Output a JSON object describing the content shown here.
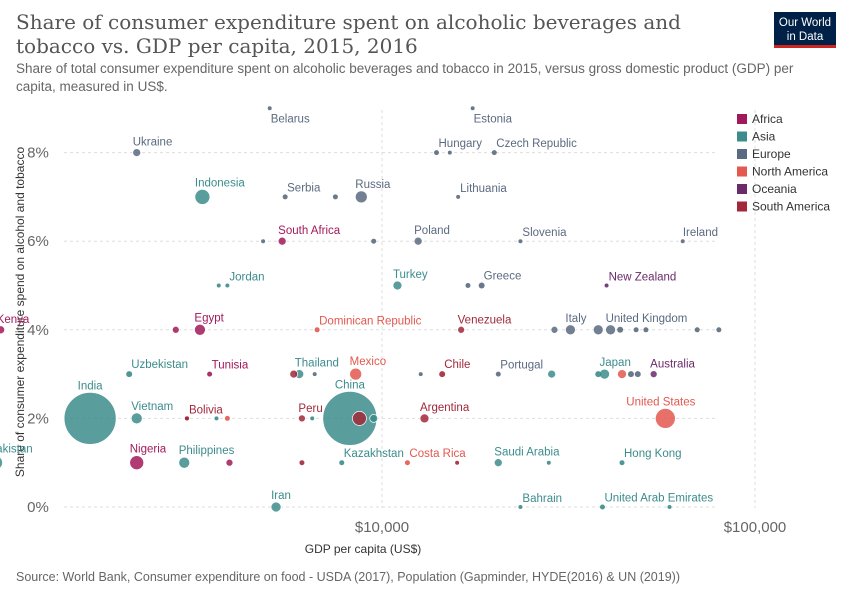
{
  "header": {
    "title": "Share of consumer expenditure spent on alcoholic beverages and tobacco vs. GDP per capita, 2015, 2016",
    "subtitle": "Share of total consumer expenditure spent on alcoholic beverages and tobacco in 2015, versus gross domestic product (GDP) per capita, measured in US$.",
    "logo_line1": "Our World",
    "logo_line2": "in Data"
  },
  "footer": {
    "source": "Source: World Bank, Consumer expenditure on food - USDA (2017), Population (Gapminder, HYDE(2016) & UN (2019))"
  },
  "chart_data": {
    "type": "scatter",
    "xlabel": "GDP per capita (US$)",
    "ylabel": "Share of consumer expenditure spend on alcohol and tobacco",
    "x_scale": "log",
    "xlim": [
      800,
      100000
    ],
    "ylim": [
      0,
      9
    ],
    "x_ticks": [
      {
        "value": 10000,
        "label": "$10,000"
      },
      {
        "value": 100000,
        "label": "$100,000"
      }
    ],
    "y_ticks": [
      {
        "value": 0,
        "label": "0%"
      },
      {
        "value": 2,
        "label": "2%"
      },
      {
        "value": 4,
        "label": "4%"
      },
      {
        "value": 6,
        "label": "6%"
      },
      {
        "value": 8,
        "label": "8%"
      }
    ],
    "grid": true,
    "legend_position": "right",
    "legend": [
      {
        "name": "Africa",
        "color": "#a2195b"
      },
      {
        "name": "Asia",
        "color": "#3c8c8c"
      },
      {
        "name": "Europe",
        "color": "#5b6a80"
      },
      {
        "name": "North America",
        "color": "#e3584f"
      },
      {
        "name": "Oceania",
        "color": "#6b2a6a"
      },
      {
        "name": "South America",
        "color": "#a1293a"
      }
    ],
    "points": [
      {
        "label": "Belarus",
        "x": 5000,
        "y": 9.0,
        "region": "Europe",
        "size": 2
      },
      {
        "label": "Estonia",
        "x": 17500,
        "y": 9.0,
        "region": "Europe",
        "size": 2
      },
      {
        "label": "Ukraine",
        "x": 2200,
        "y": 8.0,
        "region": "Europe",
        "size": 4
      },
      {
        "label": "Hungary",
        "x": 14000,
        "y": 8.0,
        "region": "Europe",
        "size": 2.5
      },
      {
        "label": "",
        "x": 15200,
        "y": 8.0,
        "region": "Europe",
        "size": 2
      },
      {
        "label": "Czech Republic",
        "x": 20000,
        "y": 8.0,
        "region": "Europe",
        "size": 2.5
      },
      {
        "label": "Indonesia",
        "x": 3300,
        "y": 7.0,
        "region": "Asia",
        "size": 7.5
      },
      {
        "label": "Serbia",
        "x": 5500,
        "y": 7.0,
        "region": "Europe",
        "size": 2.5
      },
      {
        "label": "",
        "x": 7500,
        "y": 7.0,
        "region": "Europe",
        "size": 2.5
      },
      {
        "label": "Russia",
        "x": 8800,
        "y": 7.0,
        "region": "Europe",
        "size": 6
      },
      {
        "label": "Lithuania",
        "x": 16000,
        "y": 7.0,
        "region": "Europe",
        "size": 2
      },
      {
        "label": "",
        "x": 4800,
        "y": 6.0,
        "region": "Europe",
        "size": 2
      },
      {
        "label": "South Africa",
        "x": 5400,
        "y": 6.0,
        "region": "Africa",
        "size": 4
      },
      {
        "label": "",
        "x": 9500,
        "y": 6.0,
        "region": "Europe",
        "size": 2.5
      },
      {
        "label": "Poland",
        "x": 12500,
        "y": 6.0,
        "region": "Europe",
        "size": 4
      },
      {
        "label": "Slovenia",
        "x": 23500,
        "y": 6.0,
        "region": "Europe",
        "size": 2
      },
      {
        "label": "Ireland",
        "x": 64000,
        "y": 6.0,
        "region": "Europe",
        "size": 2
      },
      {
        "label": "",
        "x": 3650,
        "y": 5.0,
        "region": "Asia",
        "size": 2
      },
      {
        "label": "Jordan",
        "x": 3850,
        "y": 5.0,
        "region": "Asia",
        "size": 2
      },
      {
        "label": "Turkey",
        "x": 11000,
        "y": 5.0,
        "region": "Asia",
        "size": 4.5
      },
      {
        "label": "",
        "x": 17000,
        "y": 5.0,
        "region": "Europe",
        "size": 2.5
      },
      {
        "label": "Greece",
        "x": 18500,
        "y": 5.0,
        "region": "Europe",
        "size": 3
      },
      {
        "label": "New Zealand",
        "x": 40000,
        "y": 5.0,
        "region": "Oceania",
        "size": 2
      },
      {
        "label": "Kenya",
        "x": 950,
        "y": 4.0,
        "region": "Africa",
        "size": 4
      },
      {
        "label": "",
        "x": 2800,
        "y": 4.0,
        "region": "Africa",
        "size": 3.5
      },
      {
        "label": "Egypt",
        "x": 3250,
        "y": 4.0,
        "region": "Africa",
        "size": 5.5
      },
      {
        "label": "Dominican Republic",
        "x": 6700,
        "y": 4.0,
        "region": "North America",
        "size": 2.5
      },
      {
        "label": "Venezuela",
        "x": 16300,
        "y": 4.0,
        "region": "South America",
        "size": 3.5
      },
      {
        "label": "",
        "x": 29000,
        "y": 4.0,
        "region": "Europe",
        "size": 3.5
      },
      {
        "label": "Italy",
        "x": 32000,
        "y": 4.0,
        "region": "Europe",
        "size": 5
      },
      {
        "label": "",
        "x": 38000,
        "y": 4.0,
        "region": "Europe",
        "size": 5
      },
      {
        "label": "United Kingdom",
        "x": 41000,
        "y": 4.0,
        "region": "Europe",
        "size": 5
      },
      {
        "label": "",
        "x": 43500,
        "y": 4.0,
        "region": "Europe",
        "size": 3
      },
      {
        "label": "",
        "x": 48000,
        "y": 4.0,
        "region": "Europe",
        "size": 2.5
      },
      {
        "label": "",
        "x": 51000,
        "y": 4.0,
        "region": "Europe",
        "size": 2.5
      },
      {
        "label": "",
        "x": 70000,
        "y": 4.0,
        "region": "Europe",
        "size": 2.5
      },
      {
        "label": "",
        "x": 80000,
        "y": 4.0,
        "region": "Europe",
        "size": 2.5
      },
      {
        "label": "Uzbekistan",
        "x": 2100,
        "y": 3.0,
        "region": "Asia",
        "size": 3
      },
      {
        "label": "Tunisia",
        "x": 3450,
        "y": 3.0,
        "region": "Africa",
        "size": 2.5
      },
      {
        "label": "",
        "x": 5800,
        "y": 3.0,
        "region": "South America",
        "size": 4
      },
      {
        "label": "Thailand",
        "x": 6000,
        "y": 3.0,
        "region": "Asia",
        "size": 4.5
      },
      {
        "label": "",
        "x": 6600,
        "y": 3.0,
        "region": "Europe",
        "size": 2
      },
      {
        "label": "Mexico",
        "x": 8500,
        "y": 3.0,
        "region": "North America",
        "size": 6
      },
      {
        "label": "",
        "x": 12700,
        "y": 3.0,
        "region": "Europe",
        "size": 2
      },
      {
        "label": "Chile",
        "x": 14500,
        "y": 3.0,
        "region": "South America",
        "size": 3
      },
      {
        "label": "Portugal",
        "x": 20500,
        "y": 3.0,
        "region": "Europe",
        "size": 2.5
      },
      {
        "label": "",
        "x": 28500,
        "y": 3.0,
        "region": "Asia",
        "size": 4
      },
      {
        "label": "",
        "x": 38000,
        "y": 3.0,
        "region": "Asia",
        "size": 3
      },
      {
        "label": "Japan",
        "x": 39500,
        "y": 3.0,
        "region": "Asia",
        "size": 5
      },
      {
        "label": "",
        "x": 44000,
        "y": 3.0,
        "region": "North America",
        "size": 4.5
      },
      {
        "label": "",
        "x": 46500,
        "y": 3.0,
        "region": "Europe",
        "size": 3
      },
      {
        "label": "",
        "x": 48500,
        "y": 3.0,
        "region": "Europe",
        "size": 3
      },
      {
        "label": "Australia",
        "x": 53500,
        "y": 3.0,
        "region": "Oceania",
        "size": 3.5
      },
      {
        "label": "",
        "x": 920,
        "y": 2.0,
        "region": "Africa",
        "size": 3
      },
      {
        "label": "India",
        "x": 1650,
        "y": 2.0,
        "region": "Asia",
        "size": 26
      },
      {
        "label": "Vietnam",
        "x": 2200,
        "y": 2.0,
        "region": "Asia",
        "size": 5.5
      },
      {
        "label": "",
        "x": 3000,
        "y": 2.0,
        "region": "Africa",
        "size": 2
      },
      {
        "label": "Bolivia",
        "x": 3000,
        "y": 2.0,
        "region": "South America",
        "size": 2
      },
      {
        "label": "",
        "x": 3600,
        "y": 2.0,
        "region": "Asia",
        "size": 2
      },
      {
        "label": "",
        "x": 3850,
        "y": 2.0,
        "region": "North America",
        "size": 2.5
      },
      {
        "label": "Peru",
        "x": 6100,
        "y": 2.0,
        "region": "South America",
        "size": 3.5
      },
      {
        "label": "",
        "x": 6500,
        "y": 2.0,
        "region": "Asia",
        "size": 2
      },
      {
        "label": "China",
        "x": 8200,
        "y": 2.0,
        "region": "Asia",
        "size": 27
      },
      {
        "label": "",
        "x": 8700,
        "y": 2.0,
        "region": "South America",
        "size": 7
      },
      {
        "label": "",
        "x": 9500,
        "y": 2.0,
        "region": "Asia",
        "size": 4
      },
      {
        "label": "Argentina",
        "x": 13000,
        "y": 2.0,
        "region": "South America",
        "size": 4.5
      },
      {
        "label": "United States",
        "x": 57500,
        "y": 2.0,
        "region": "North America",
        "size": 10
      },
      {
        "label": "Pakistan",
        "x": 920,
        "y": 1.0,
        "region": "Asia",
        "size": 7
      },
      {
        "label": "Nigeria",
        "x": 2200,
        "y": 1.0,
        "region": "Africa",
        "size": 7
      },
      {
        "label": "Philippines",
        "x": 2950,
        "y": 1.0,
        "region": "Asia",
        "size": 5.5
      },
      {
        "label": "",
        "x": 3900,
        "y": 1.0,
        "region": "Africa",
        "size": 3.5
      },
      {
        "label": "",
        "x": 6100,
        "y": 1.0,
        "region": "South America",
        "size": 2.5
      },
      {
        "label": "Kazakhstan",
        "x": 7800,
        "y": 1.0,
        "region": "Asia",
        "size": 2.5
      },
      {
        "label": "Costa Rica",
        "x": 11700,
        "y": 1.0,
        "region": "North America",
        "size": 2.5
      },
      {
        "label": "",
        "x": 15900,
        "y": 1.0,
        "region": "South America",
        "size": 2
      },
      {
        "label": "Saudi Arabia",
        "x": 20500,
        "y": 1.0,
        "region": "Asia",
        "size": 4
      },
      {
        "label": "",
        "x": 28000,
        "y": 1.0,
        "region": "Asia",
        "size": 2
      },
      {
        "label": "Hong Kong",
        "x": 44000,
        "y": 1.0,
        "region": "Asia",
        "size": 2.5
      },
      {
        "label": "Iran",
        "x": 5200,
        "y": 0.0,
        "region": "Asia",
        "size": 5
      },
      {
        "label": "Bahrain",
        "x": 23500,
        "y": 0.0,
        "region": "Asia",
        "size": 2
      },
      {
        "label": "United Arab Emirates",
        "x": 39000,
        "y": 0.0,
        "region": "Asia",
        "size": 2.5
      },
      {
        "label": "",
        "x": 59000,
        "y": 0.0,
        "region": "Asia",
        "size": 2
      }
    ]
  }
}
